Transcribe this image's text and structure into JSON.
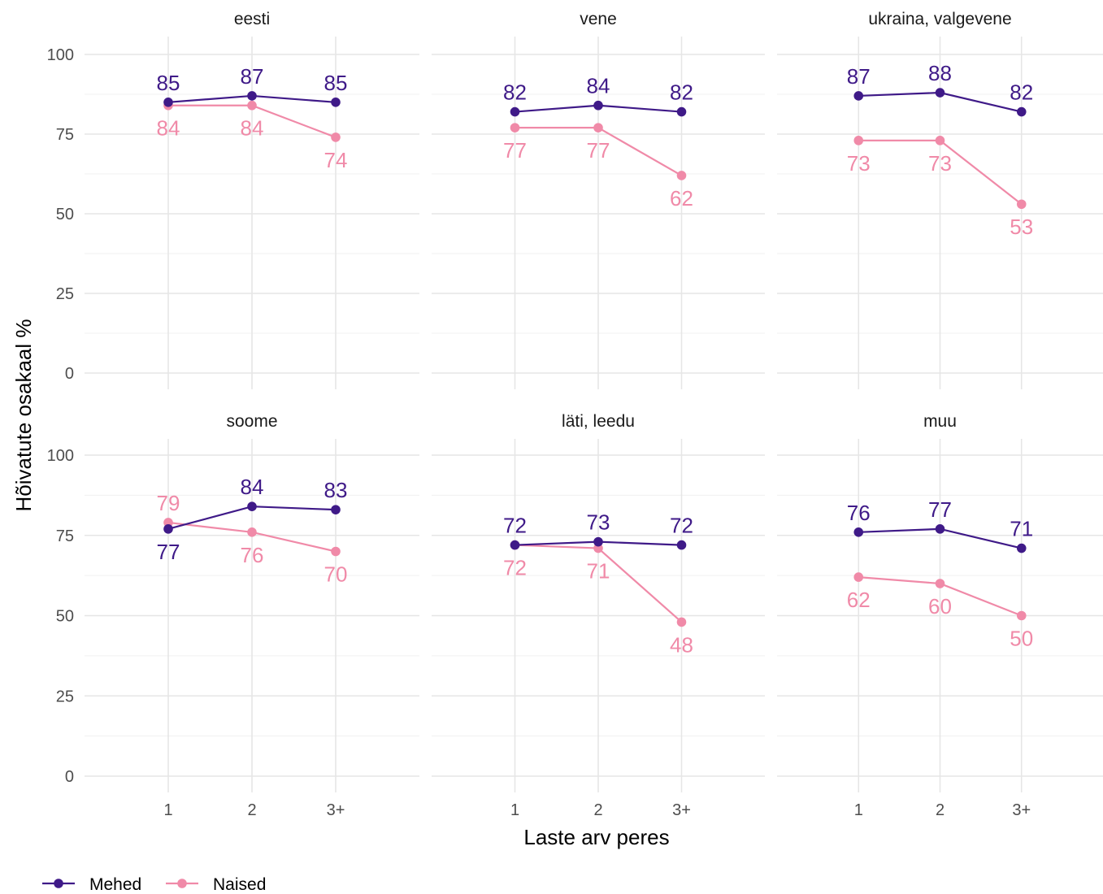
{
  "chart_data": {
    "type": "line",
    "xlabel": "Laste arv peres",
    "ylabel": "Hõivatute osakaal %",
    "ylim": [
      0,
      100
    ],
    "yticks": [
      0,
      25,
      50,
      75,
      100
    ],
    "categories": [
      "1",
      "2",
      "3+"
    ],
    "grid": true,
    "legend": {
      "position": "bottom-left",
      "entries": [
        "Mehed",
        "Naised"
      ]
    },
    "colors": {
      "Mehed": "#3f1a88",
      "Naised": "#f08aa8"
    },
    "panels": [
      {
        "title": "eesti",
        "series": [
          {
            "name": "Mehed",
            "values": [
              85,
              87,
              85
            ]
          },
          {
            "name": "Naised",
            "values": [
              84,
              84,
              74
            ]
          }
        ]
      },
      {
        "title": "vene",
        "series": [
          {
            "name": "Mehed",
            "values": [
              82,
              84,
              82
            ]
          },
          {
            "name": "Naised",
            "values": [
              77,
              77,
              62
            ]
          }
        ]
      },
      {
        "title": "ukraina, valgevene",
        "series": [
          {
            "name": "Mehed",
            "values": [
              87,
              88,
              82
            ]
          },
          {
            "name": "Naised",
            "values": [
              73,
              73,
              53
            ]
          }
        ]
      },
      {
        "title": "soome",
        "series": [
          {
            "name": "Mehed",
            "values": [
              77,
              84,
              83
            ]
          },
          {
            "name": "Naised",
            "values": [
              79,
              76,
              70
            ]
          }
        ]
      },
      {
        "title": "läti, leedu",
        "series": [
          {
            "name": "Mehed",
            "values": [
              72,
              73,
              72
            ]
          },
          {
            "name": "Naised",
            "values": [
              72,
              71,
              48
            ]
          }
        ]
      },
      {
        "title": "muu",
        "series": [
          {
            "name": "Mehed",
            "values": [
              76,
              77,
              71
            ]
          },
          {
            "name": "Naised",
            "values": [
              62,
              60,
              50
            ]
          }
        ]
      }
    ]
  }
}
